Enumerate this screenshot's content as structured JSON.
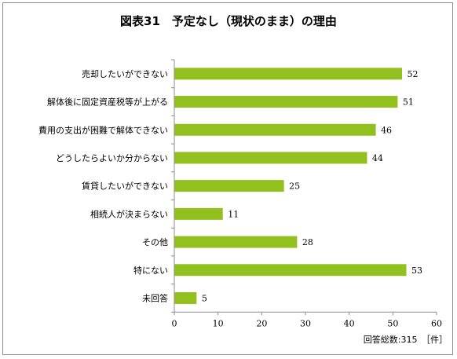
{
  "chart_data": {
    "type": "bar",
    "orientation": "horizontal",
    "title": "図表31　予定なし（現状のまま）の理由",
    "categories": [
      "売却したいができない",
      "解体後に固定資産税等が上がる",
      "費用の支出が困難で解体できない",
      "どうしたらよいか分からない",
      "賃貸したいができない",
      "相続人が決まらない",
      "その他",
      "特にない",
      "未回答"
    ],
    "values": [
      52,
      51,
      46,
      44,
      25,
      11,
      28,
      53,
      5
    ],
    "xlim": [
      0,
      60
    ],
    "xticks": [
      0,
      10,
      20,
      30,
      40,
      50,
      60
    ],
    "grid": false,
    "bar_color": "#92c01f",
    "footnote": "回答総数:315　［件］"
  }
}
